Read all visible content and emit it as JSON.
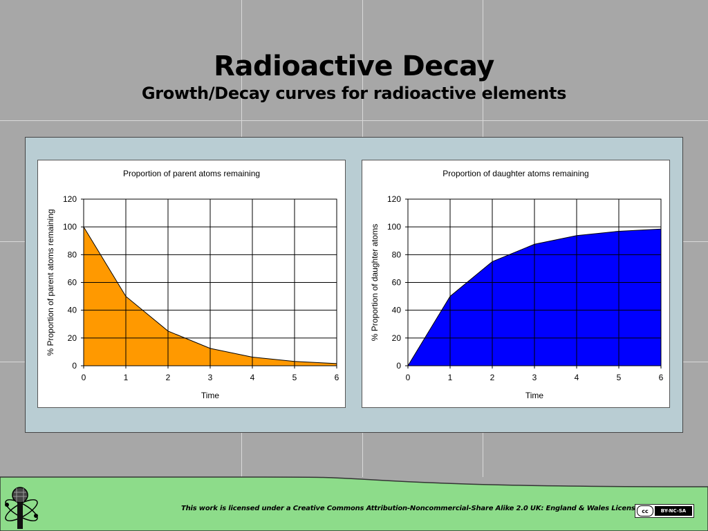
{
  "slide": {
    "title": "Radioactive Decay",
    "subtitle": "Growth/Decay curves for radioactive elements"
  },
  "colors": {
    "background": "#a7a7a7",
    "panel": "#b9cdd3",
    "footer_green": "#8ddc8a",
    "parent_fill": "#ff9900",
    "daughter_fill": "#0000ff"
  },
  "footer": {
    "license_text": "This work is licensed under a Creative Commons Attribution-Noncommercial-Share Alike 2.0 UK: England & Wales License",
    "badge_left": "cc",
    "badge_right": "BY-NC-SA",
    "logo_icon": "microphone-atom-logo-icon"
  },
  "chart_data": [
    {
      "type": "area",
      "title": "Proportion of parent atoms remaining",
      "xlabel": "Time",
      "ylabel": "% Proportion of parent atoms remaining",
      "x": [
        0,
        1,
        2,
        3,
        4,
        5,
        6
      ],
      "series": [
        {
          "values": [
            100,
            50,
            25,
            12.5,
            6.25,
            3.125,
            1.5625
          ]
        }
      ],
      "xlim": [
        0,
        6
      ],
      "ylim": [
        0,
        120
      ],
      "xticks": [
        "0",
        "1",
        "2",
        "3",
        "4",
        "5",
        "6"
      ],
      "yticks": [
        "0",
        "20",
        "40",
        "60",
        "80",
        "100",
        "120"
      ],
      "grid": true,
      "color": "#ff9900"
    },
    {
      "type": "area",
      "title": "Proportion of daughter atoms remaining",
      "xlabel": "Time",
      "ylabel": "% Proportion of daughter atoms",
      "x": [
        0,
        1,
        2,
        3,
        4,
        5,
        6
      ],
      "series": [
        {
          "values": [
            0,
            50,
            75,
            87.5,
            93.75,
            96.875,
            98.4375
          ]
        }
      ],
      "xlim": [
        0,
        6
      ],
      "ylim": [
        0,
        120
      ],
      "xticks": [
        "0",
        "1",
        "2",
        "3",
        "4",
        "5",
        "6"
      ],
      "yticks": [
        "0",
        "20",
        "40",
        "60",
        "80",
        "100",
        "120"
      ],
      "grid": true,
      "color": "#0000ff"
    }
  ]
}
